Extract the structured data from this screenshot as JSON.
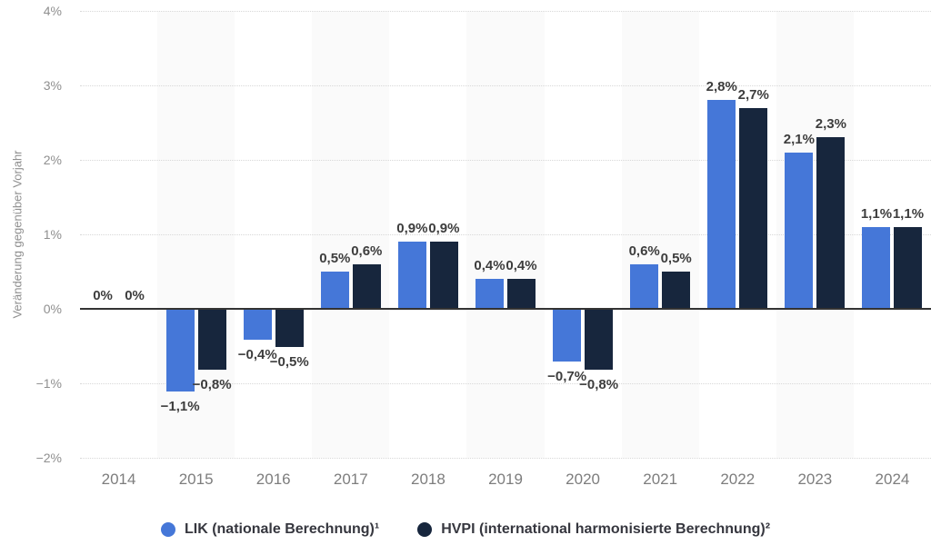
{
  "chart_data": {
    "type": "bar",
    "title": "",
    "xlabel": "",
    "ylabel": "Veränderung gegenüber Vorjahr",
    "ylim": [
      -2,
      4
    ],
    "grid": "horizontal-dotted",
    "zero_line": true,
    "legend_position": "bottom",
    "column_bands": "alternate-light-gray",
    "categories": [
      "2014",
      "2015",
      "2016",
      "2017",
      "2018",
      "2019",
      "2020",
      "2021",
      "2022",
      "2023",
      "2024"
    ],
    "y_ticks": [
      {
        "value": 4,
        "label": "4%"
      },
      {
        "value": 3,
        "label": "3%"
      },
      {
        "value": 2,
        "label": "2%"
      },
      {
        "value": 1,
        "label": "1%"
      },
      {
        "value": 0,
        "label": "0%"
      },
      {
        "value": -1,
        "label": "−1%"
      },
      {
        "value": -2,
        "label": "−2%"
      }
    ],
    "series": [
      {
        "name": "LIK (nationale Berechnung)¹",
        "short": "lik",
        "color": "#4577d8",
        "values": [
          0,
          -1.1,
          -0.4,
          0.5,
          0.9,
          0.4,
          -0.7,
          0.6,
          2.8,
          2.1,
          1.1
        ],
        "labels": [
          "0%",
          "−1,1%",
          "−0,4%",
          "0,5%",
          "0,9%",
          "0,4%",
          "−0,7%",
          "0,6%",
          "2,8%",
          "2,1%",
          "1,1%"
        ]
      },
      {
        "name": "HVPI (international harmonisierte Berechnung)²",
        "short": "hvpi",
        "color": "#17263d",
        "values": [
          0,
          -0.8,
          -0.5,
          0.6,
          0.9,
          0.4,
          -0.8,
          0.5,
          2.7,
          2.3,
          1.1
        ],
        "labels": [
          "0%",
          "−0,8%",
          "−0,5%",
          "0,6%",
          "0,9%",
          "0,4%",
          "−0,8%",
          "0,5%",
          "2,7%",
          "2,3%",
          "1,1%"
        ]
      }
    ],
    "style": {
      "band_color": "#fafafa",
      "gridline_color": "#d8d8d8",
      "zero_line_color": "#333333",
      "value_label_color": "#3d3d3d",
      "axis_text_color": "#8f8f8f",
      "x_label_color": "#7d7d7d",
      "legend_text_color": "#36373f"
    }
  }
}
